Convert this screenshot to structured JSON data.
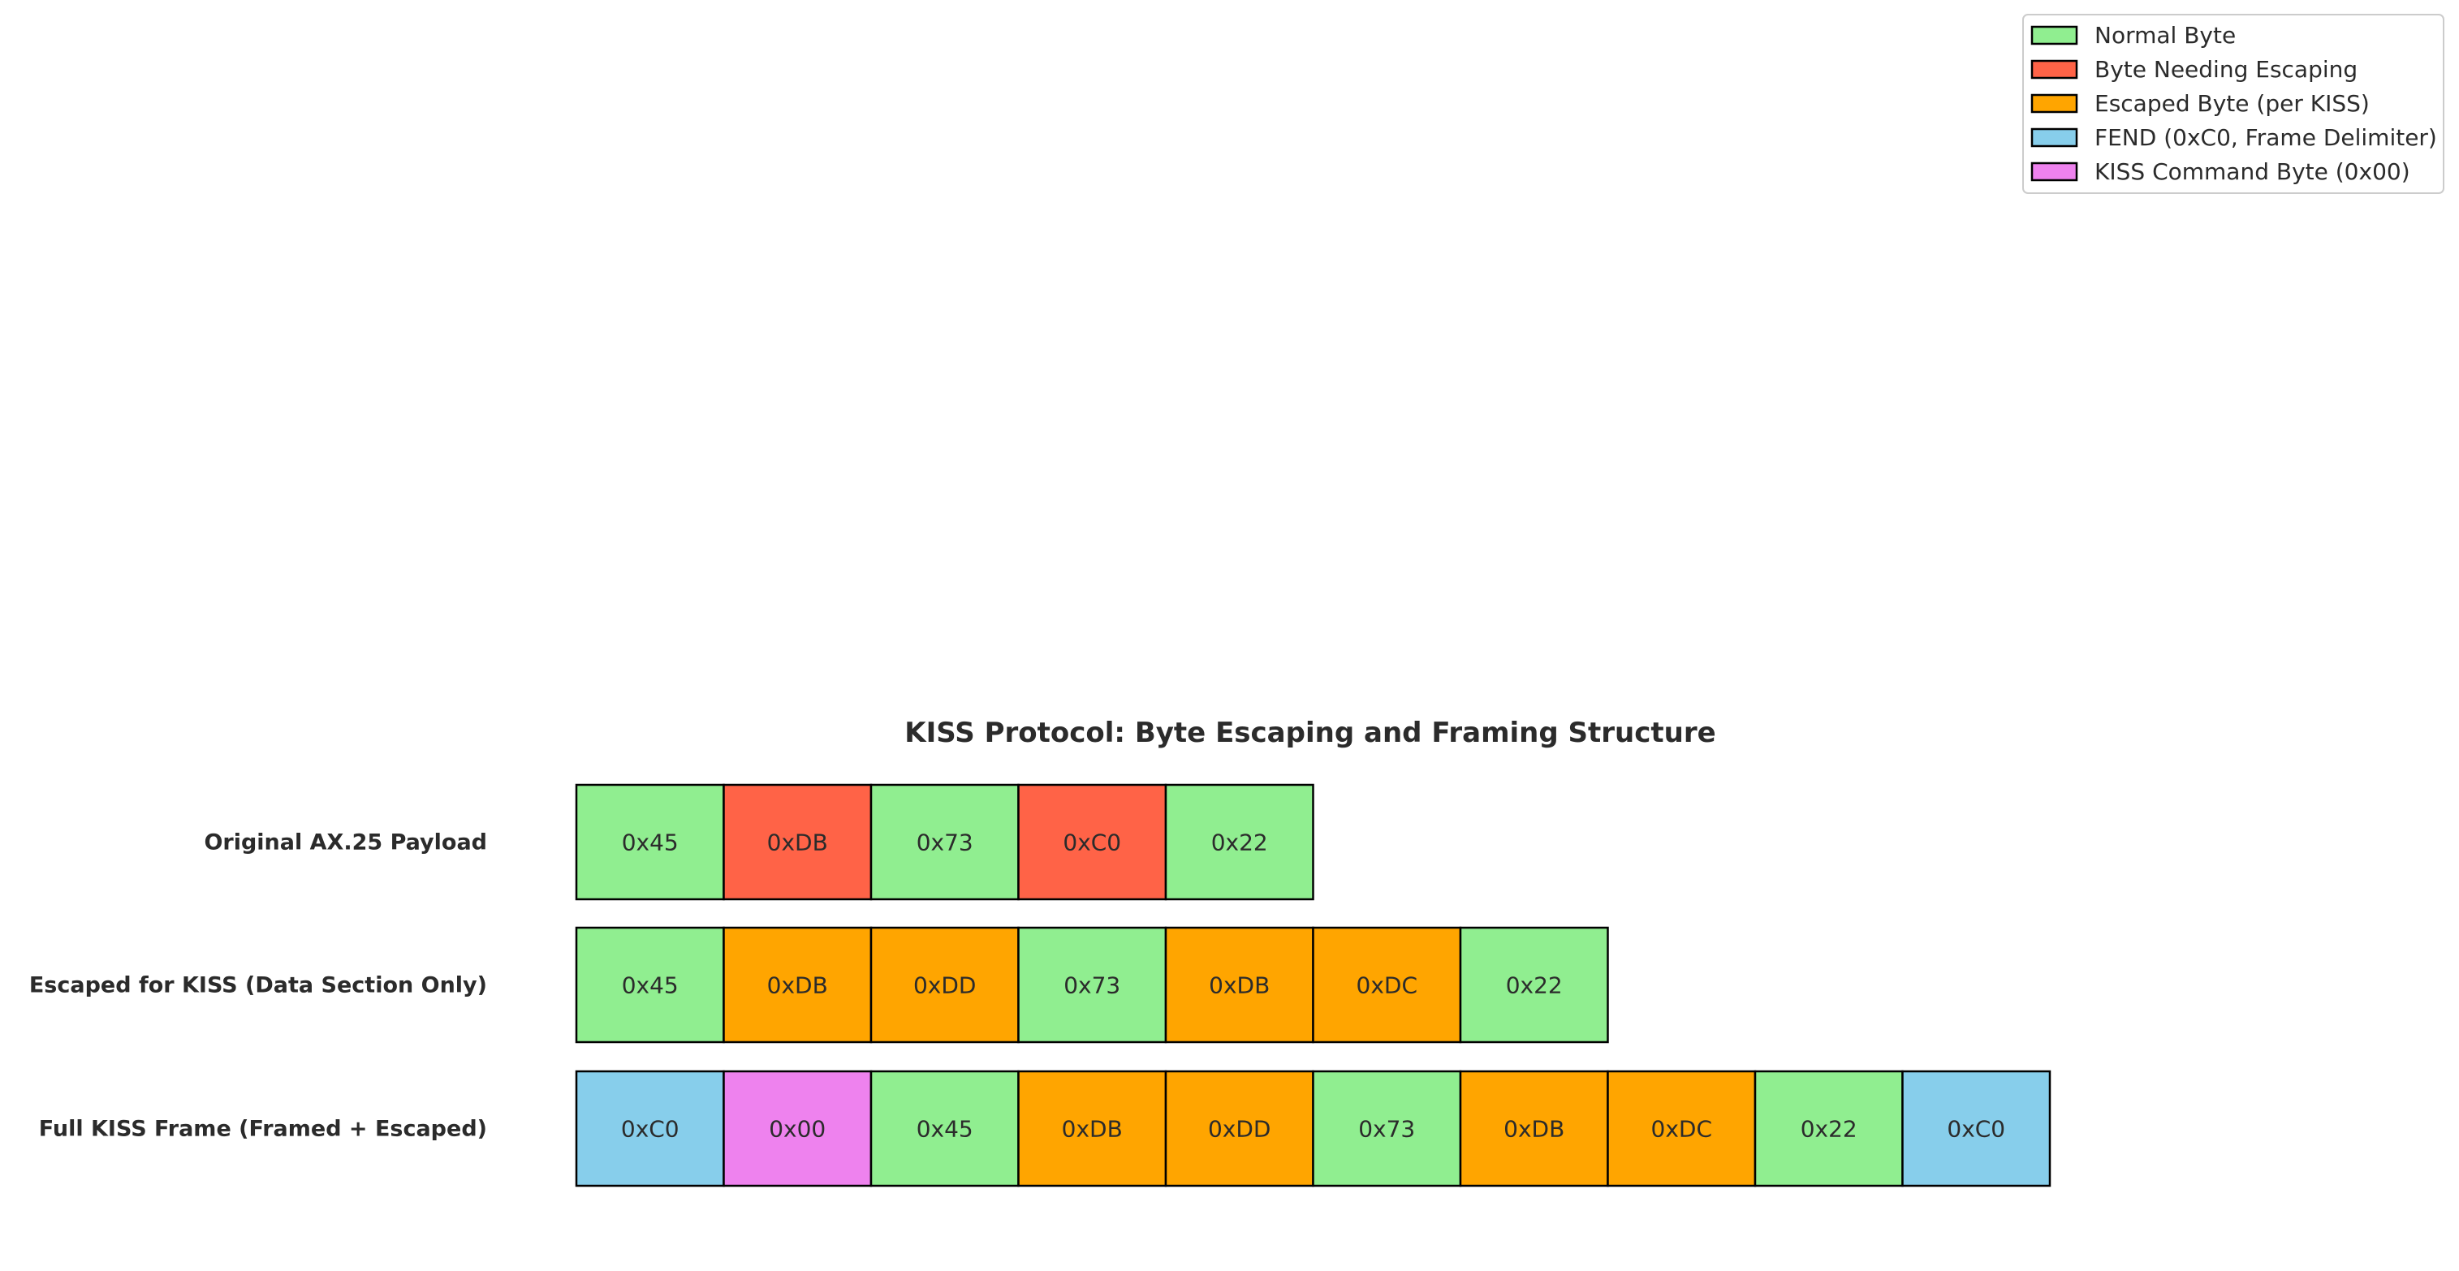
{
  "diagram": {
    "title": "KISS Protocol: Byte Escaping and Framing Structure",
    "colors": {
      "normal": "#90ee90",
      "escape_needed": "#ff6347",
      "escaped": "#ffa500",
      "fend": "#87ceeb",
      "command": "#ee82ee"
    },
    "legend": [
      {
        "key": "normal",
        "label": "Normal Byte"
      },
      {
        "key": "escape_needed",
        "label": "Byte Needing Escaping"
      },
      {
        "key": "escaped",
        "label": "Escaped Byte (per KISS)"
      },
      {
        "key": "fend",
        "label": "FEND (0xC0, Frame Delimiter)"
      },
      {
        "key": "command",
        "label": "KISS Command Byte (0x00)"
      }
    ],
    "rows": [
      {
        "label": "Original AX.25 Payload",
        "bytes": [
          {
            "value": "0x45",
            "kind": "normal"
          },
          {
            "value": "0xDB",
            "kind": "escape_needed"
          },
          {
            "value": "0x73",
            "kind": "normal"
          },
          {
            "value": "0xC0",
            "kind": "escape_needed"
          },
          {
            "value": "0x22",
            "kind": "normal"
          }
        ]
      },
      {
        "label": "Escaped for KISS (Data Section Only)",
        "bytes": [
          {
            "value": "0x45",
            "kind": "normal"
          },
          {
            "value": "0xDB",
            "kind": "escaped"
          },
          {
            "value": "0xDD",
            "kind": "escaped"
          },
          {
            "value": "0x73",
            "kind": "normal"
          },
          {
            "value": "0xDB",
            "kind": "escaped"
          },
          {
            "value": "0xDC",
            "kind": "escaped"
          },
          {
            "value": "0x22",
            "kind": "normal"
          }
        ]
      },
      {
        "label": "Full KISS Frame (Framed + Escaped)",
        "bytes": [
          {
            "value": "0xC0",
            "kind": "fend"
          },
          {
            "value": "0x00",
            "kind": "command"
          },
          {
            "value": "0x45",
            "kind": "normal"
          },
          {
            "value": "0xDB",
            "kind": "escaped"
          },
          {
            "value": "0xDD",
            "kind": "escaped"
          },
          {
            "value": "0x73",
            "kind": "normal"
          },
          {
            "value": "0xDB",
            "kind": "escaped"
          },
          {
            "value": "0xDC",
            "kind": "escaped"
          },
          {
            "value": "0x22",
            "kind": "normal"
          },
          {
            "value": "0xC0",
            "kind": "fend"
          }
        ]
      }
    ]
  }
}
